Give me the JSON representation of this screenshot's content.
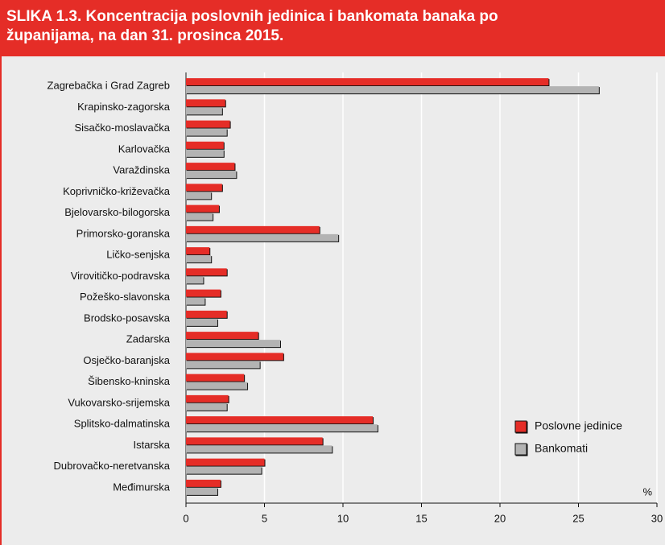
{
  "chart_data": {
    "type": "barh",
    "title": "SLIKA 1.3. Koncentracija poslovnih jedinica i bankomata banaka po županijama, na dan 31. prosinca 2015.",
    "categories": [
      "Zagrebačka i Grad Zagreb",
      "Krapinsko-zagorska",
      "Sisačko-moslavačka",
      "Karlovačka",
      "Varaždinska",
      "Koprivničko-križevačka",
      "Bjelovarsko-bilogorska",
      "Primorsko-goranska",
      "Ličko-senjska",
      "Virovitičko-podravska",
      "Požeško-slavonska",
      "Brodsko-posavska",
      "Zadarska",
      "Osječko-baranjska",
      "Šibensko-kninska",
      "Vukovarsko-srijemska",
      "Splitsko-dalmatinska",
      "Istarska",
      "Dubrovačko-neretvanska",
      "Međimurska"
    ],
    "series": [
      {
        "name": "Poslovne jedinice",
        "color": "#e52d27",
        "values": [
          23.1,
          2.5,
          2.8,
          2.4,
          3.1,
          2.3,
          2.1,
          8.5,
          1.5,
          2.6,
          2.2,
          2.6,
          4.6,
          6.2,
          3.7,
          2.7,
          11.9,
          8.7,
          5.0,
          2.2
        ]
      },
      {
        "name": "Bankomati",
        "color": "#b3b3b3",
        "values": [
          26.3,
          2.3,
          2.6,
          2.4,
          3.2,
          1.6,
          1.7,
          9.7,
          1.6,
          1.1,
          1.2,
          2.0,
          6.0,
          4.7,
          3.9,
          2.6,
          12.2,
          9.3,
          4.8,
          2.0
        ]
      }
    ],
    "xlabel": "%",
    "xlim": [
      0,
      30
    ],
    "xticks": [
      0,
      5,
      10,
      15,
      20,
      25,
      30
    ],
    "grid": true,
    "legend": "lower right"
  }
}
